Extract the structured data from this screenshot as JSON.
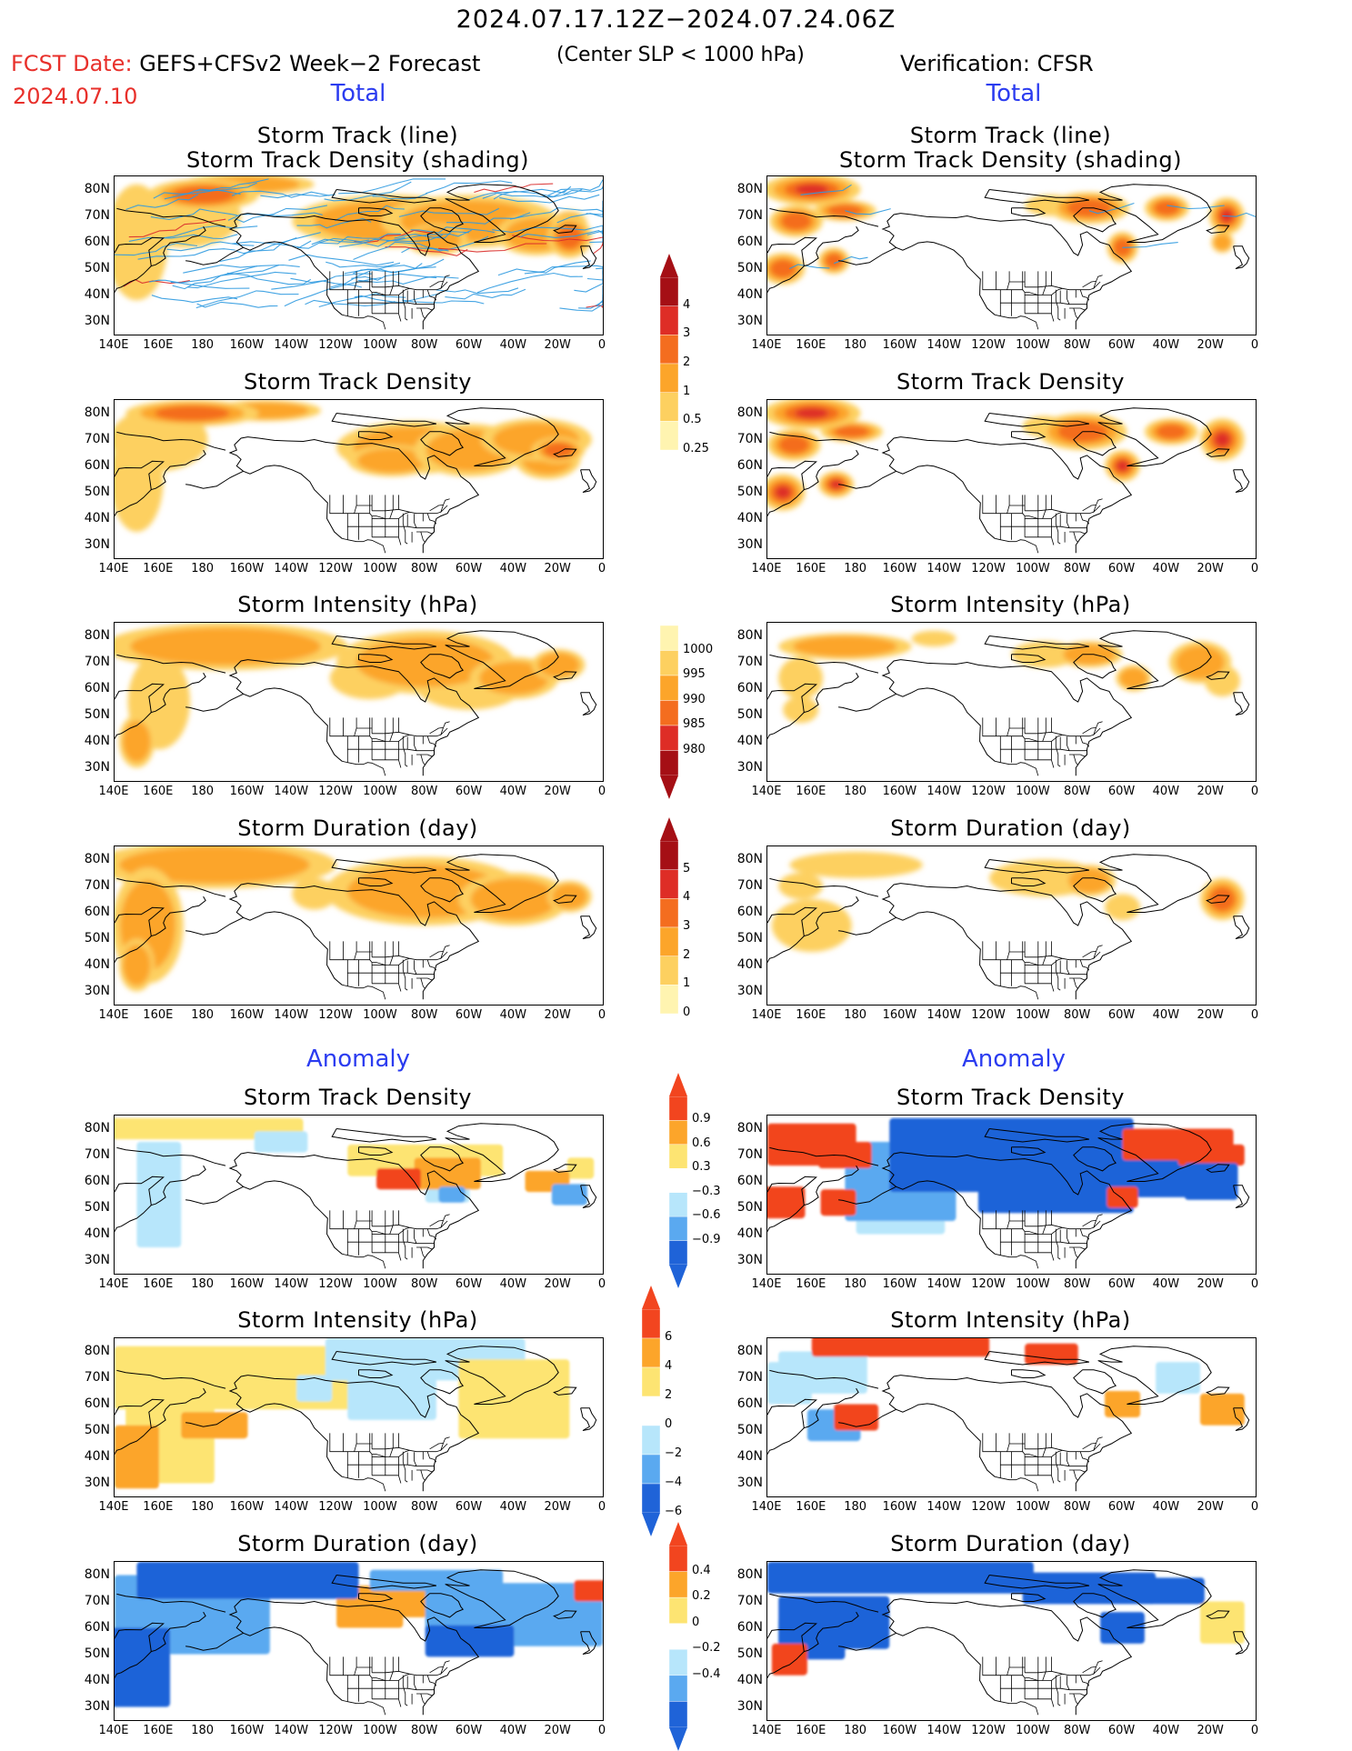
{
  "header": {
    "period": "2024.07.17.12Z−2024.07.24.06Z",
    "fcst_label": "FCST Date:",
    "model": "GEFS+CFSv2 Week−2 Forecast",
    "fcst_date": "2024.07.10",
    "criterion": "(Center SLP < 1000 hPa)",
    "verification": "Verification: CFSR"
  },
  "sections": {
    "total": "Total",
    "anomaly": "Anomaly"
  },
  "panel_titles": {
    "track": "Storm Track (line)",
    "track_sub": "Storm Track Density (shading)",
    "density": "Storm Track Density",
    "intensity": "Storm Intensity (hPa)",
    "duration": "Storm Duration (day)"
  },
  "axes": {
    "lat_labels": [
      "80N",
      "70N",
      "60N",
      "50N",
      "40N",
      "30N"
    ],
    "lon_labels": [
      "140E",
      "160E",
      "180",
      "160W",
      "140W",
      "120W",
      "100W",
      "80W",
      "60W",
      "40W",
      "20W",
      "0"
    ]
  },
  "colorbars": {
    "density_total": {
      "labels": [
        "4",
        "3",
        "2",
        "1",
        "0.5",
        "0.25"
      ],
      "colors": [
        "#a50f15",
        "#de2d26",
        "#f46d1f",
        "#fca52a",
        "#fdd060",
        "#fff4b0"
      ]
    },
    "intensity_total": {
      "labels": [
        "1000",
        "995",
        "990",
        "985",
        "980"
      ],
      "colors": [
        "#fff4b0",
        "#fdd060",
        "#fca52a",
        "#f46d1f",
        "#de2d26",
        "#a50f15"
      ]
    },
    "duration_total": {
      "labels": [
        "5",
        "4",
        "3",
        "2",
        "1",
        "0"
      ],
      "colors": [
        "#a50f15",
        "#de2d26",
        "#f46d1f",
        "#fca52a",
        "#fdd060",
        "#fff4b0"
      ]
    },
    "density_anom": {
      "labels": [
        "0.9",
        "0.6",
        "0.3",
        "−0.3",
        "−0.6",
        "−0.9"
      ],
      "colors": [
        "#f2451f",
        "#fca52a",
        "#fde472",
        "#ffffff",
        "#b7e6fb",
        "#5aa9f0",
        "#1f63d8"
      ]
    },
    "intensity_anom": {
      "labels": [
        "6",
        "4",
        "2",
        "0",
        "−2",
        "−4",
        "−6"
      ],
      "colors": [
        "#f2451f",
        "#fca52a",
        "#fde472",
        "#ffffff",
        "#b7e6fb",
        "#5aa9f0",
        "#1f63d8"
      ]
    },
    "duration_anom": {
      "labels": [
        "0.4",
        "0.2",
        "0",
        "−0.2",
        "−0.4"
      ],
      "colors": [
        "#f2451f",
        "#fca52a",
        "#fde472",
        "#ffffff",
        "#b7e6fb",
        "#5aa9f0",
        "#1f63d8"
      ]
    }
  },
  "palette": {
    "track_line": "#2f9ae0",
    "track_line_dark": "#d92c2c",
    "coast": "#000000"
  }
}
